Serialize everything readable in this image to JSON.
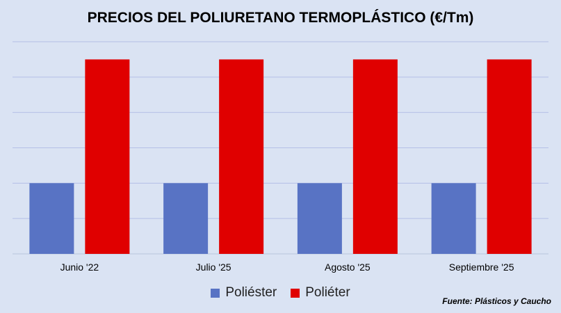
{
  "chart_data": {
    "type": "bar",
    "title": "PRECIOS DEL POLIURETANO TERMOPLÁSTICO (€/Tm)",
    "categories": [
      "Junio '22",
      "Julio '25",
      "Agosto '25",
      "Septiembre '25"
    ],
    "series": [
      {
        "name": "Poliéster",
        "values": [
          2,
          2,
          2,
          2
        ],
        "color": "#5873c4"
      },
      {
        "name": "Poliéter",
        "values": [
          5.5,
          5.5,
          5.5,
          5.5
        ],
        "color": "#e00000"
      }
    ],
    "ylim": [
      0,
      6
    ],
    "grid": true,
    "legend_position": "bottom",
    "source": "Fuente: Plásticos y Caucho"
  }
}
